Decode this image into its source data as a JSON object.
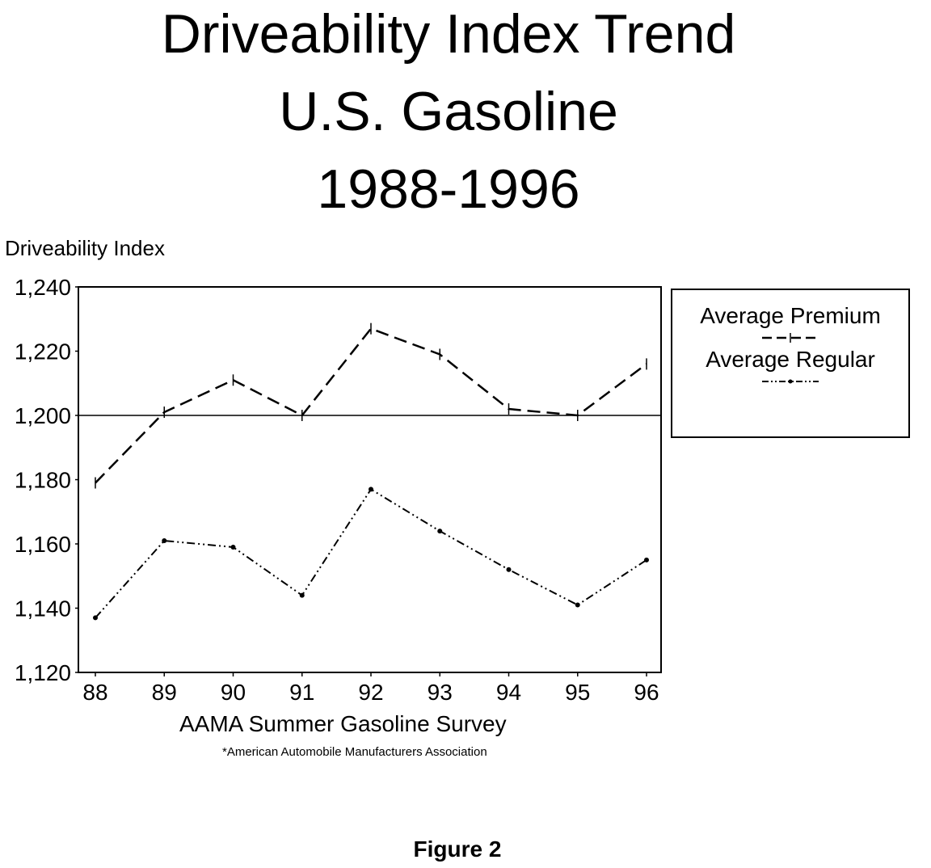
{
  "chart_data": {
    "type": "line",
    "title": [
      "Driveability Index Trend",
      "U.S. Gasoline",
      "1988-1996"
    ],
    "ylabel": "Driveability Index",
    "xlabel": "AAMA Summer Gasoline Survey",
    "footnote": "*American Automobile Manufacturers Association",
    "caption": "Figure 2",
    "categories": [
      "88",
      "89",
      "90",
      "91",
      "92",
      "93",
      "94",
      "95",
      "96"
    ],
    "ylim": [
      1120,
      1240
    ],
    "yticks": [
      1120,
      1140,
      1160,
      1180,
      1200,
      1220,
      1240
    ],
    "ytick_labels": [
      "1,120",
      "1,140",
      "1,160",
      "1,180",
      "1,200",
      "1,220",
      "1,240"
    ],
    "reference_line": 1200,
    "legend_placement": "right",
    "series": [
      {
        "name": "Average Premium",
        "style": "dashed",
        "values": [
          1179,
          1201,
          1211,
          1200,
          1227,
          1219,
          1202,
          1200,
          1216
        ]
      },
      {
        "name": "Average Regular",
        "style": "dash-dot-dot",
        "values": [
          1137,
          1161,
          1159,
          1144,
          1177,
          1164,
          1152,
          1141,
          1155
        ]
      }
    ]
  }
}
